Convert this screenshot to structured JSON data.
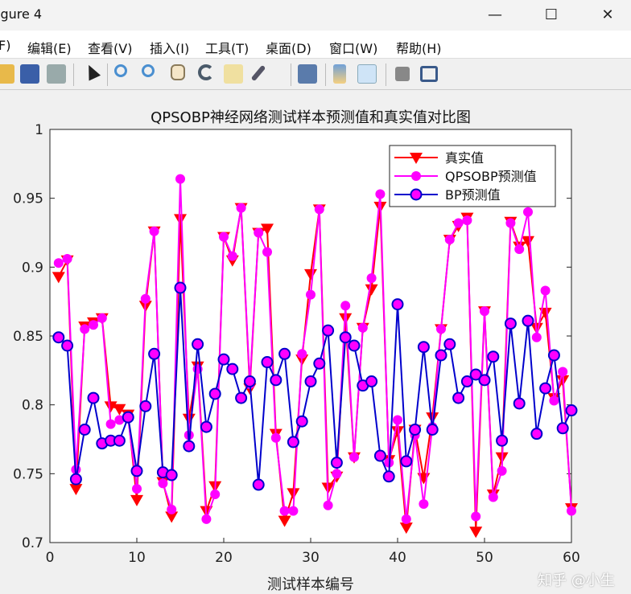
{
  "window": {
    "title": "igure 4",
    "minimize": "—",
    "maximize": "☐",
    "close": "✕"
  },
  "menu": [
    "F)",
    "编辑(E)",
    "查看(V)",
    "插入(I)",
    "工具(T)",
    "桌面(D)",
    "窗口(W)",
    "帮助(H)"
  ],
  "toolbar": [
    "open-icon",
    "save-icon",
    "print-icon",
    "pointer-icon",
    "zoom-in-icon",
    "zoom-out-icon",
    "pan-icon",
    "rotate-icon",
    "data-cursor-icon",
    "brush-icon",
    "link-icon",
    "colorbar-icon",
    "legend-icon",
    "hide-plot-tools-icon",
    "show-plot-tools-icon"
  ],
  "watermark": "知乎 @小生",
  "chart_data": {
    "type": "line",
    "title": "QPSOBP神经网络测试样本预测值和真实值对比图",
    "xlabel": "测试样本编号",
    "ylabel": "",
    "xlim": [
      0,
      60
    ],
    "ylim": [
      0.7,
      1
    ],
    "xticks": [
      "0",
      "10",
      "20",
      "30",
      "40",
      "50",
      "60"
    ],
    "yticks": [
      "0.7",
      "0.75",
      "0.8",
      "0.85",
      "0.9",
      "0.95",
      "1"
    ],
    "legend_position": "top-right",
    "x": [
      1,
      2,
      3,
      4,
      5,
      6,
      7,
      8,
      9,
      10,
      11,
      12,
      13,
      14,
      15,
      16,
      17,
      18,
      19,
      20,
      21,
      22,
      23,
      24,
      25,
      26,
      27,
      28,
      29,
      30,
      31,
      32,
      33,
      34,
      35,
      36,
      37,
      38,
      39,
      40,
      41,
      42,
      43,
      44,
      45,
      46,
      47,
      48,
      49,
      50,
      51,
      52,
      53,
      54,
      55,
      56,
      57,
      58,
      59,
      60
    ],
    "series": [
      {
        "name": "真实值",
        "color": "#ff0000",
        "marker": "triangle-down",
        "values": [
          0.893,
          0.905,
          0.739,
          0.857,
          0.86,
          0.863,
          0.799,
          0.797,
          0.793,
          0.731,
          0.872,
          0.926,
          0.744,
          0.719,
          0.935,
          0.79,
          0.828,
          0.723,
          0.741,
          0.922,
          0.905,
          0.943,
          0.812,
          0.925,
          0.928,
          0.779,
          0.716,
          0.736,
          0.833,
          0.895,
          0.942,
          0.74,
          0.748,
          0.863,
          0.762,
          0.856,
          0.884,
          0.944,
          0.76,
          0.781,
          0.711,
          0.782,
          0.747,
          0.791,
          0.855,
          0.92,
          0.93,
          0.936,
          0.708,
          0.868,
          0.735,
          0.762,
          0.933,
          0.915,
          0.919,
          0.856,
          0.867,
          0.805,
          0.818,
          0.725
        ]
      },
      {
        "name": "QPSOBP预测值",
        "color": "#ff00ff",
        "marker": "circle",
        "values": [
          0.903,
          0.906,
          0.753,
          0.855,
          0.858,
          0.863,
          0.786,
          0.789,
          0.79,
          0.739,
          0.877,
          0.926,
          0.743,
          0.724,
          0.964,
          0.778,
          0.826,
          0.717,
          0.735,
          0.922,
          0.908,
          0.943,
          0.815,
          0.925,
          0.911,
          0.776,
          0.723,
          0.723,
          0.837,
          0.88,
          0.942,
          0.727,
          0.75,
          0.872,
          0.762,
          0.856,
          0.892,
          0.953,
          0.758,
          0.789,
          0.717,
          0.778,
          0.728,
          0.784,
          0.855,
          0.92,
          0.932,
          0.934,
          0.719,
          0.868,
          0.733,
          0.752,
          0.932,
          0.913,
          0.94,
          0.849,
          0.883,
          0.803,
          0.824,
          0.723
        ]
      },
      {
        "name": "BP预测值",
        "color": "#0000cc",
        "marker": "circle",
        "values": [
          0.849,
          0.843,
          0.746,
          0.782,
          0.805,
          0.772,
          0.774,
          0.774,
          0.791,
          0.752,
          0.799,
          0.837,
          0.751,
          0.749,
          0.885,
          0.77,
          0.844,
          0.784,
          0.808,
          0.833,
          0.826,
          0.805,
          0.817,
          0.742,
          0.831,
          0.818,
          0.837,
          0.773,
          0.788,
          0.817,
          0.83,
          0.854,
          0.758,
          0.849,
          0.843,
          0.814,
          0.817,
          0.763,
          0.748,
          0.873,
          0.759,
          0.782,
          0.842,
          0.782,
          0.836,
          0.844,
          0.805,
          0.817,
          0.822,
          0.818,
          0.835,
          0.774,
          0.859,
          0.801,
          0.861,
          0.779,
          0.812,
          0.836,
          0.783,
          0.796
        ]
      }
    ]
  }
}
